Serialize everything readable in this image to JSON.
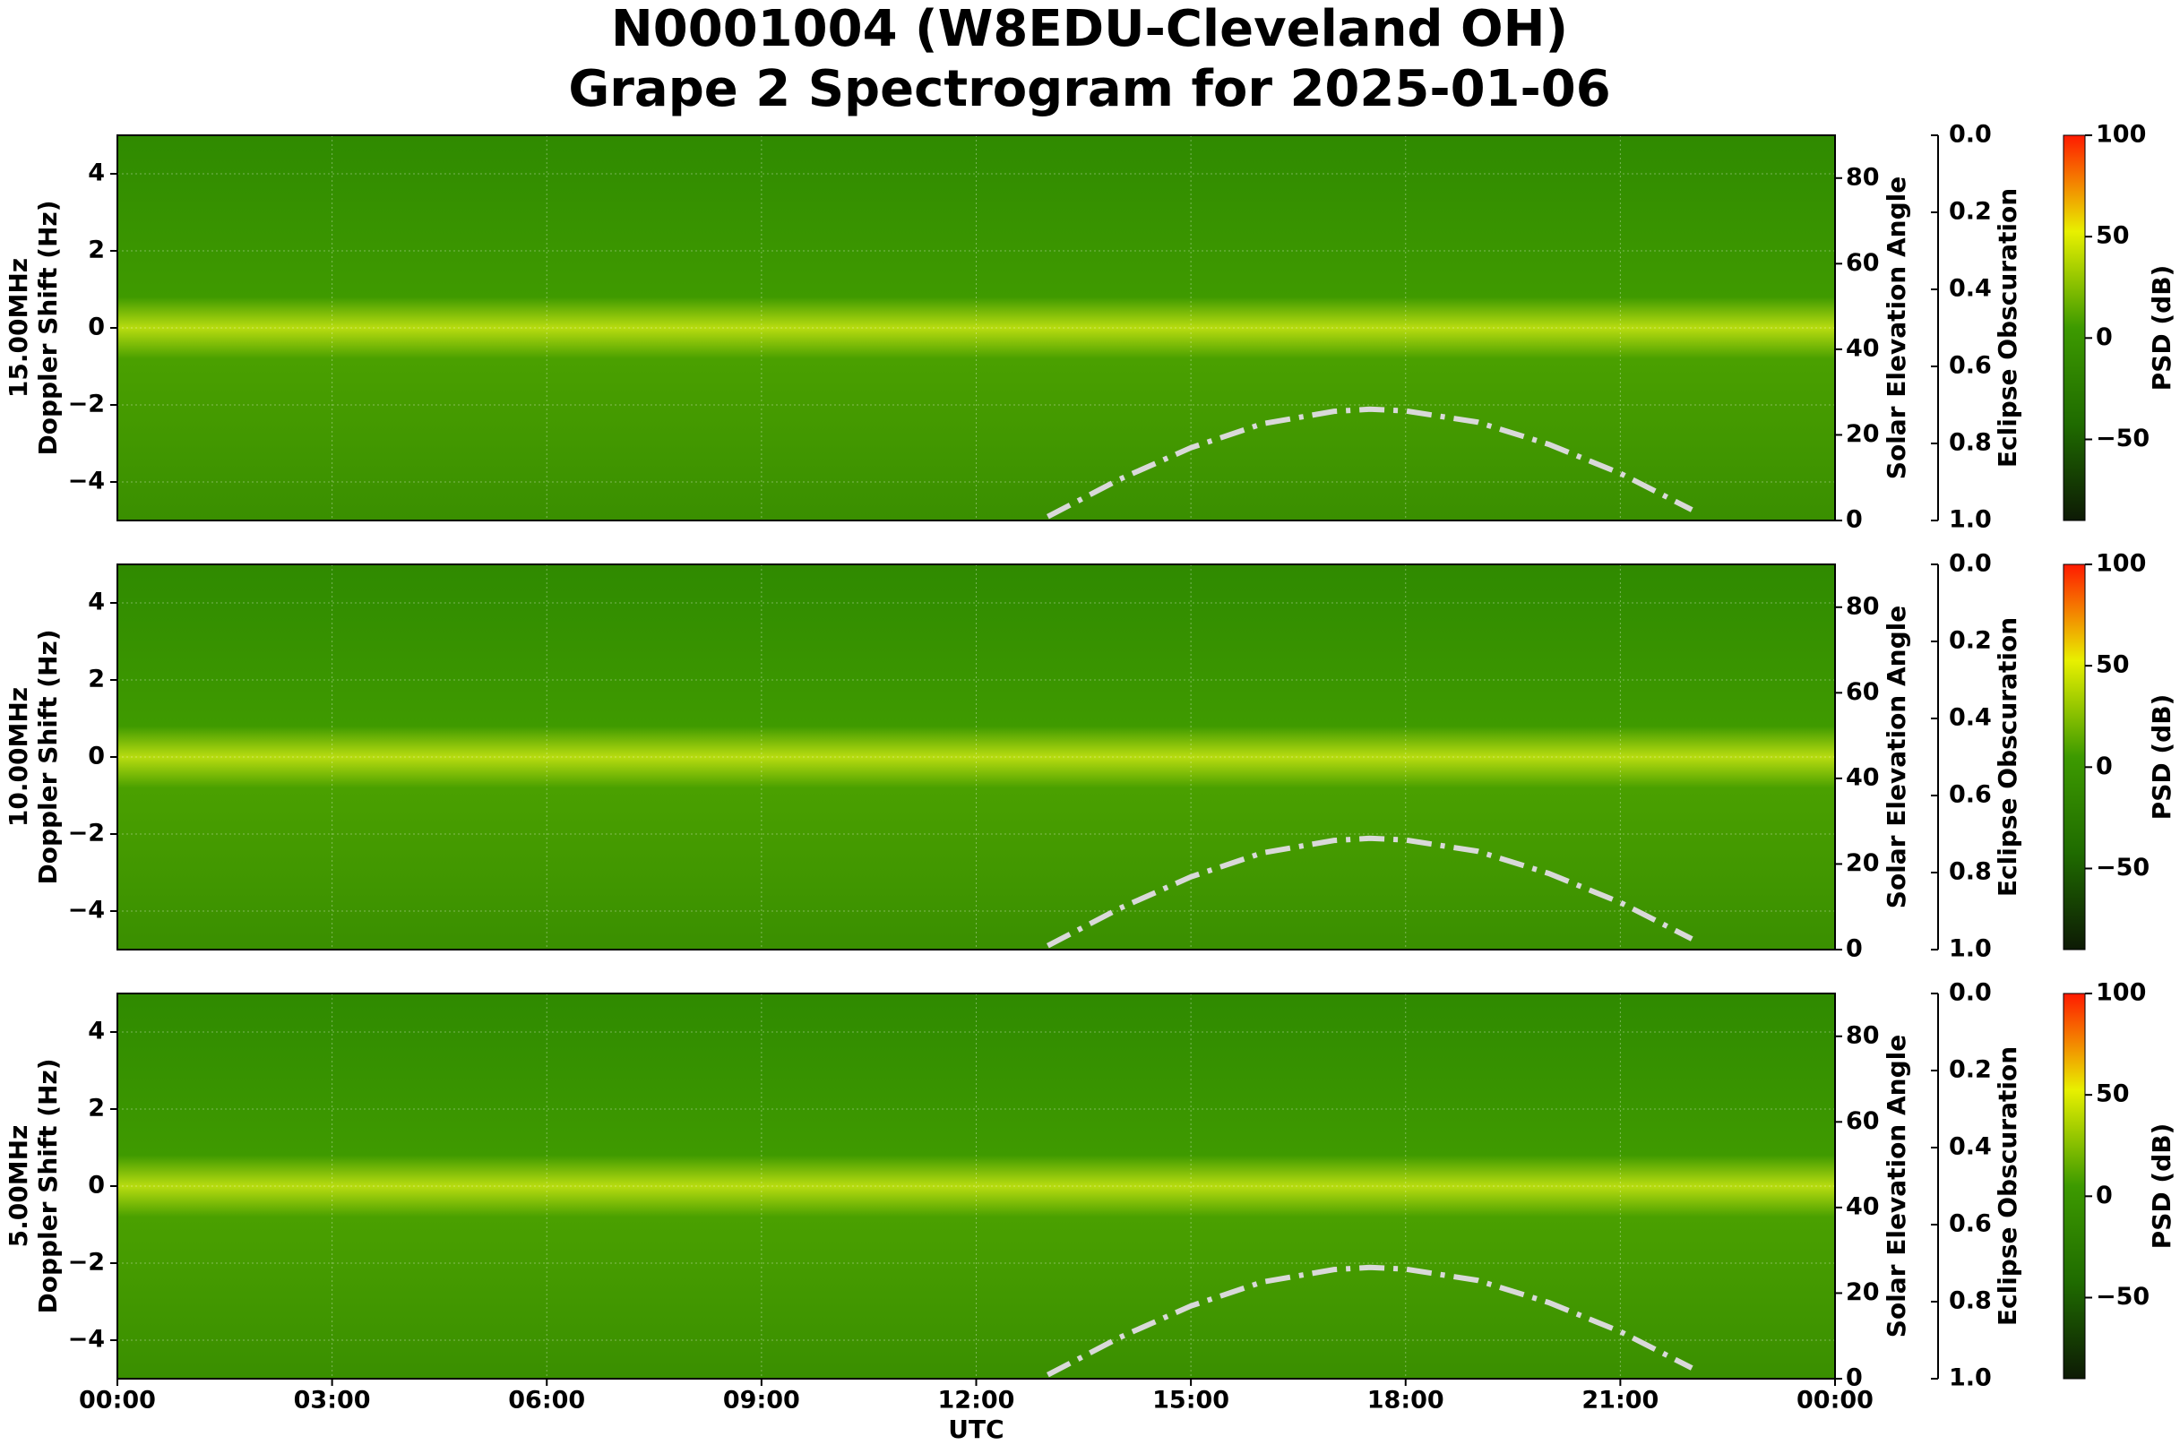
{
  "title": [
    "N0001004 (W8EDU-Cleveland OH)",
    "Grape 2 Spectrogram for 2025-01-06"
  ],
  "chart_data": [
    {
      "type": "spectrogram",
      "ylabel": [
        "15.00MHz",
        "Doppler Shift (Hz)"
      ],
      "ylim": [
        -5,
        5
      ],
      "yticks": [
        {
          "value": -4,
          "label": "−4"
        },
        {
          "value": -2,
          "label": "−2"
        },
        0,
        2,
        4
      ],
      "xlim": [
        0,
        24
      ],
      "grid": true,
      "y2label": "Solar Elevation Angle",
      "y2lim": [
        0,
        90
      ],
      "y2ticks": [
        0,
        20,
        40,
        60,
        80
      ],
      "y3label": "Eclipse Obscuration",
      "y3lim": [
        1.0,
        0.0
      ],
      "y3ticks": [
        {
          "value": 0,
          "label": "0.0"
        },
        {
          "value": 0.2,
          "label": "0.2"
        },
        {
          "value": 0.4,
          "label": "0.4"
        },
        {
          "value": 0.6,
          "label": "0.6"
        },
        {
          "value": 0.8,
          "label": "0.8"
        },
        {
          "value": 1,
          "label": "1.0"
        }
      ],
      "elevation": {
        "axis": "y2",
        "color": "#d9d9d9",
        "x": [
          13,
          14,
          15,
          16,
          17,
          17.5,
          18,
          19,
          20,
          21,
          22
        ],
        "values": [
          0.9,
          9.6,
          17,
          22.6,
          25.5,
          26,
          25.6,
          23,
          17.8,
          11,
          2.5
        ]
      },
      "colorbar": {
        "label": "PSD (dB)",
        "lim": [
          -90,
          100
        ],
        "ticks": [
          {
            "value": -50,
            "label": "−50"
          },
          0,
          50,
          100
        ],
        "colormap": [
          "#0d1a05",
          "#1f6b00",
          "#3d9a00",
          "#e8f000",
          "#ff1a00"
        ]
      }
    },
    {
      "type": "spectrogram",
      "ylabel": [
        "10.00MHz",
        "Doppler Shift (Hz)"
      ],
      "ylim": [
        -5,
        5
      ],
      "yticks": [
        {
          "value": -4,
          "label": "−4"
        },
        {
          "value": -2,
          "label": "−2"
        },
        0,
        2,
        4
      ],
      "xlim": [
        0,
        24
      ],
      "grid": true,
      "y2label": "Solar Elevation Angle",
      "y2lim": [
        0,
        90
      ],
      "y2ticks": [
        0,
        20,
        40,
        60,
        80
      ],
      "y3label": "Eclipse Obscuration",
      "y3lim": [
        1.0,
        0.0
      ],
      "y3ticks": [
        {
          "value": 0,
          "label": "0.0"
        },
        {
          "value": 0.2,
          "label": "0.2"
        },
        {
          "value": 0.4,
          "label": "0.4"
        },
        {
          "value": 0.6,
          "label": "0.6"
        },
        {
          "value": 0.8,
          "label": "0.8"
        },
        {
          "value": 1,
          "label": "1.0"
        }
      ],
      "elevation": {
        "axis": "y2",
        "color": "#d9d9d9",
        "x": [
          13,
          14,
          15,
          16,
          17,
          17.5,
          18,
          19,
          20,
          21,
          22
        ],
        "values": [
          0.9,
          9.6,
          17,
          22.6,
          25.5,
          26,
          25.6,
          23,
          17.8,
          11,
          2.5
        ]
      },
      "colorbar": {
        "label": "PSD (dB)",
        "lim": [
          -90,
          100
        ],
        "ticks": [
          {
            "value": -50,
            "label": "−50"
          },
          0,
          50,
          100
        ],
        "colormap": [
          "#0d1a05",
          "#1f6b00",
          "#3d9a00",
          "#e8f000",
          "#ff1a00"
        ]
      }
    },
    {
      "type": "spectrogram",
      "ylabel": [
        "5.00MHz",
        "Doppler Shift (Hz)"
      ],
      "ylim": [
        -5,
        5
      ],
      "yticks": [
        {
          "value": -4,
          "label": "−4"
        },
        {
          "value": -2,
          "label": "−2"
        },
        0,
        2,
        4
      ],
      "xlim": [
        0,
        24
      ],
      "grid": true,
      "xlabel": "UTC",
      "xticks": [
        {
          "value": 0,
          "label": "00:00"
        },
        {
          "value": 3,
          "label": "03:00"
        },
        {
          "value": 6,
          "label": "06:00"
        },
        {
          "value": 9,
          "label": "09:00"
        },
        {
          "value": 12,
          "label": "12:00"
        },
        {
          "value": 15,
          "label": "15:00"
        },
        {
          "value": 18,
          "label": "18:00"
        },
        {
          "value": 21,
          "label": "21:00"
        },
        {
          "value": 24,
          "label": "00:00"
        }
      ],
      "y2label": "Solar Elevation Angle",
      "y2lim": [
        0,
        90
      ],
      "y2ticks": [
        0,
        20,
        40,
        60,
        80
      ],
      "y3label": "Eclipse Obscuration",
      "y3lim": [
        1.0,
        0.0
      ],
      "y3ticks": [
        {
          "value": 0,
          "label": "0.0"
        },
        {
          "value": 0.2,
          "label": "0.2"
        },
        {
          "value": 0.4,
          "label": "0.4"
        },
        {
          "value": 0.6,
          "label": "0.6"
        },
        {
          "value": 0.8,
          "label": "0.8"
        },
        {
          "value": 1,
          "label": "1.0"
        }
      ],
      "elevation": {
        "axis": "y2",
        "color": "#d9d9d9",
        "x": [
          13,
          14,
          15,
          16,
          17,
          17.5,
          18,
          19,
          20,
          21,
          22
        ],
        "values": [
          0.9,
          9.6,
          17,
          22.6,
          25.5,
          26,
          25.6,
          23,
          17.8,
          11,
          2.5
        ]
      },
      "colorbar": {
        "label": "PSD (dB)",
        "lim": [
          -90,
          100
        ],
        "ticks": [
          {
            "value": -50,
            "label": "−50"
          },
          0,
          50,
          100
        ],
        "colormap": [
          "#0d1a05",
          "#1f6b00",
          "#3d9a00",
          "#e8f000",
          "#ff1a00"
        ]
      }
    }
  ]
}
